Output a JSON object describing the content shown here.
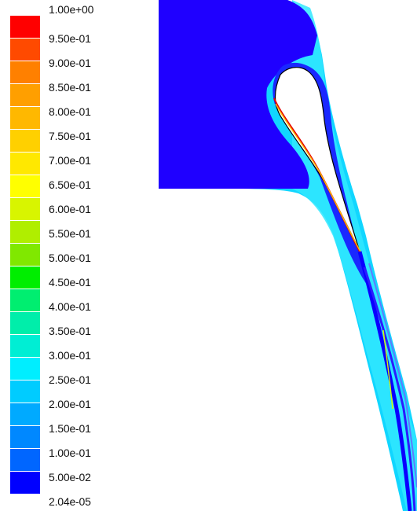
{
  "colorbar": {
    "labels": [
      "1.00e+00",
      "9.50e-01",
      "9.00e-01",
      "8.50e-01",
      "8.00e-01",
      "7.50e-01",
      "7.00e-01",
      "6.50e-01",
      "6.00e-01",
      "5.50e-01",
      "5.00e-01",
      "4.50e-01",
      "4.00e-01",
      "3.50e-01",
      "3.00e-01",
      "2.50e-01",
      "2.00e-01",
      "1.50e-01",
      "1.00e-01",
      "5.00e-02",
      "2.04e-05"
    ],
    "colors": [
      "#ff0000",
      "#ff4a00",
      "#ff8000",
      "#ff9f00",
      "#ffb800",
      "#ffd000",
      "#ffe800",
      "#ffff00",
      "#d8f500",
      "#b0ee00",
      "#80e800",
      "#00ee00",
      "#00ee70",
      "#00eeaa",
      "#00eed4",
      "#00eeff",
      "#00ccff",
      "#00aaff",
      "#0088ff",
      "#0066ff",
      "#0000ff"
    ]
  }
}
